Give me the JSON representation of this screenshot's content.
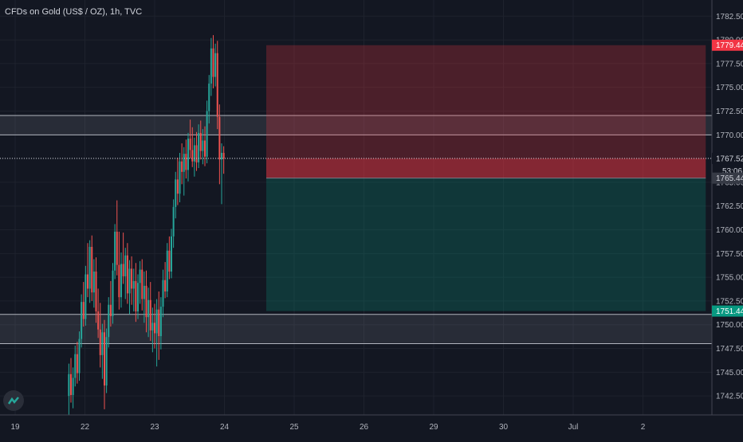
{
  "chart_data": {
    "type": "candlestick",
    "title": "CFDs on Gold (US$ / OZ), 1h, TVC",
    "ylim": [
      1740.5,
      1784.2
    ],
    "y_ticks": [
      1782.5,
      1780,
      1777.5,
      1775,
      1772.5,
      1770,
      1767.5,
      1765,
      1762.5,
      1760,
      1757.5,
      1755,
      1752.5,
      1750,
      1747.5,
      1745,
      1742.5
    ],
    "y_tick_labels": [
      "1782.50",
      "1780.00",
      "1777.50",
      "1775.00",
      "1772.50",
      "1770.00",
      "1767.50",
      "1765.00",
      "1762.50",
      "1760.00",
      "1757.50",
      "1755.00",
      "1752.50",
      "1750.00",
      "1747.50",
      "1745.00",
      "1742.50"
    ],
    "x_ticks": [
      {
        "label": "19",
        "pos": 0
      },
      {
        "label": "22",
        "pos": 1
      },
      {
        "label": "23",
        "pos": 2
      },
      {
        "label": "24",
        "pos": 3
      },
      {
        "label": "25",
        "pos": 4
      },
      {
        "label": "26",
        "pos": 5
      },
      {
        "label": "29",
        "pos": 6
      },
      {
        "label": "30",
        "pos": 7
      },
      {
        "label": "Jul",
        "pos": 8
      },
      {
        "label": "2",
        "pos": 9
      }
    ],
    "price_tags": {
      "stop_loss": {
        "value": 1779.44,
        "label": "1779.44",
        "color": "#f23645"
      },
      "current": {
        "value": 1767.52,
        "label": "1767.52"
      },
      "countdown": {
        "label": "53:06"
      },
      "entry": {
        "value": 1765.44,
        "label": "1765.44"
      },
      "take_profit": {
        "value": 1751.44,
        "label": "1751.44",
        "color": "#089981"
      }
    },
    "zones": [
      {
        "from": 1769.99,
        "to": 1772.04
      },
      {
        "from": 1748.01,
        "to": 1751.09
      }
    ],
    "position": {
      "stop": 1779.44,
      "entry": 1765.44,
      "target": 1751.44,
      "start_pos": 3.6,
      "end_pos": 9.9
    },
    "candles": [
      {
        "pos": 0.77,
        "o": 1742.5,
        "h": 1745.9,
        "l": 1740.5,
        "c": 1744.8
      },
      {
        "pos": 0.8,
        "o": 1744.8,
        "h": 1746.5,
        "l": 1741.8,
        "c": 1742.6
      },
      {
        "pos": 0.83,
        "o": 1742.6,
        "h": 1745.5,
        "l": 1741.2,
        "c": 1744.4
      },
      {
        "pos": 0.86,
        "o": 1744.4,
        "h": 1747.8,
        "l": 1743.5,
        "c": 1746.9
      },
      {
        "pos": 0.89,
        "o": 1746.9,
        "h": 1748.2,
        "l": 1743.8,
        "c": 1744.9
      },
      {
        "pos": 0.92,
        "o": 1744.9,
        "h": 1749.3,
        "l": 1744.1,
        "c": 1748.5
      },
      {
        "pos": 0.95,
        "o": 1748.5,
        "h": 1753.2,
        "l": 1747.6,
        "c": 1752.4
      },
      {
        "pos": 0.98,
        "o": 1752.4,
        "h": 1754.5,
        "l": 1749.8,
        "c": 1750.6
      },
      {
        "pos": 1.01,
        "o": 1750.6,
        "h": 1756.2,
        "l": 1749.9,
        "c": 1755.3
      },
      {
        "pos": 1.04,
        "o": 1755.3,
        "h": 1758.6,
        "l": 1752.9,
        "c": 1753.8
      },
      {
        "pos": 1.07,
        "o": 1753.8,
        "h": 1758.9,
        "l": 1752.3,
        "c": 1758.2
      },
      {
        "pos": 1.1,
        "o": 1758.2,
        "h": 1759.4,
        "l": 1752.5,
        "c": 1753.4
      },
      {
        "pos": 1.13,
        "o": 1753.4,
        "h": 1756.9,
        "l": 1751.8,
        "c": 1755.6
      },
      {
        "pos": 1.16,
        "o": 1755.6,
        "h": 1757.1,
        "l": 1750.2,
        "c": 1751.4
      },
      {
        "pos": 1.19,
        "o": 1751.4,
        "h": 1753.8,
        "l": 1748.6,
        "c": 1749.5
      },
      {
        "pos": 1.22,
        "o": 1749.5,
        "h": 1752.3,
        "l": 1745.5,
        "c": 1746.8
      },
      {
        "pos": 1.25,
        "o": 1746.8,
        "h": 1750.1,
        "l": 1744.3,
        "c": 1749.2
      },
      {
        "pos": 1.28,
        "o": 1749.2,
        "h": 1750.5,
        "l": 1741.1,
        "c": 1743.6
      },
      {
        "pos": 1.31,
        "o": 1743.6,
        "h": 1749.6,
        "l": 1742.8,
        "c": 1748.7
      },
      {
        "pos": 1.34,
        "o": 1748.7,
        "h": 1752.9,
        "l": 1747.6,
        "c": 1752.1
      },
      {
        "pos": 1.37,
        "o": 1752.1,
        "h": 1754.6,
        "l": 1749.8,
        "c": 1750.9
      },
      {
        "pos": 1.4,
        "o": 1750.9,
        "h": 1756.5,
        "l": 1750.1,
        "c": 1755.7
      },
      {
        "pos": 1.43,
        "o": 1755.7,
        "h": 1760.6,
        "l": 1754.8,
        "c": 1759.8
      },
      {
        "pos": 1.46,
        "o": 1759.8,
        "h": 1763.1,
        "l": 1755.2,
        "c": 1756.3
      },
      {
        "pos": 1.49,
        "o": 1756.3,
        "h": 1759.8,
        "l": 1751.6,
        "c": 1752.9
      },
      {
        "pos": 1.52,
        "o": 1752.9,
        "h": 1757.6,
        "l": 1751.8,
        "c": 1756.4
      },
      {
        "pos": 1.55,
        "o": 1756.4,
        "h": 1759.7,
        "l": 1754.3,
        "c": 1755.1
      },
      {
        "pos": 1.58,
        "o": 1755.1,
        "h": 1758.1,
        "l": 1752.7,
        "c": 1757.3
      },
      {
        "pos": 1.61,
        "o": 1757.3,
        "h": 1758.6,
        "l": 1752.2,
        "c": 1753.3
      },
      {
        "pos": 1.64,
        "o": 1753.3,
        "h": 1756.8,
        "l": 1751.1,
        "c": 1755.9
      },
      {
        "pos": 1.67,
        "o": 1755.9,
        "h": 1757.2,
        "l": 1752.1,
        "c": 1753.8
      },
      {
        "pos": 1.7,
        "o": 1753.8,
        "h": 1755.9,
        "l": 1751.4,
        "c": 1754.6
      },
      {
        "pos": 1.73,
        "o": 1754.6,
        "h": 1756.5,
        "l": 1750.3,
        "c": 1751.4
      },
      {
        "pos": 1.76,
        "o": 1751.4,
        "h": 1755.3,
        "l": 1750.6,
        "c": 1754.4
      },
      {
        "pos": 1.79,
        "o": 1754.4,
        "h": 1756.7,
        "l": 1752.2,
        "c": 1755.8
      },
      {
        "pos": 1.82,
        "o": 1755.8,
        "h": 1756.9,
        "l": 1751.5,
        "c": 1752.7
      },
      {
        "pos": 1.85,
        "o": 1752.7,
        "h": 1755.6,
        "l": 1750.2,
        "c": 1754.1
      },
      {
        "pos": 1.88,
        "o": 1754.1,
        "h": 1755.7,
        "l": 1749.2,
        "c": 1750.8
      },
      {
        "pos": 1.91,
        "o": 1750.8,
        "h": 1753.9,
        "l": 1748.7,
        "c": 1752.6
      },
      {
        "pos": 1.94,
        "o": 1752.6,
        "h": 1754.5,
        "l": 1748.3,
        "c": 1749.4
      },
      {
        "pos": 1.97,
        "o": 1749.4,
        "h": 1751.8,
        "l": 1747.1,
        "c": 1750.2
      },
      {
        "pos": 2.0,
        "o": 1750.2,
        "h": 1752.2,
        "l": 1747.5,
        "c": 1749.1
      },
      {
        "pos": 2.03,
        "o": 1749.1,
        "h": 1752.7,
        "l": 1745.6,
        "c": 1751.6
      },
      {
        "pos": 2.06,
        "o": 1751.6,
        "h": 1753.5,
        "l": 1746.3,
        "c": 1748.8
      },
      {
        "pos": 2.09,
        "o": 1748.8,
        "h": 1752.9,
        "l": 1747.4,
        "c": 1751.9
      },
      {
        "pos": 2.12,
        "o": 1751.9,
        "h": 1755.8,
        "l": 1750.8,
        "c": 1754.7
      },
      {
        "pos": 2.15,
        "o": 1754.7,
        "h": 1756.6,
        "l": 1752.8,
        "c": 1753.5
      },
      {
        "pos": 2.18,
        "o": 1753.5,
        "h": 1758.6,
        "l": 1752.9,
        "c": 1757.8
      },
      {
        "pos": 2.21,
        "o": 1757.8,
        "h": 1759.3,
        "l": 1754.8,
        "c": 1755.6
      },
      {
        "pos": 2.24,
        "o": 1755.6,
        "h": 1760.1,
        "l": 1754.9,
        "c": 1759.3
      },
      {
        "pos": 2.27,
        "o": 1759.3,
        "h": 1763.2,
        "l": 1758.1,
        "c": 1762.4
      },
      {
        "pos": 2.3,
        "o": 1762.4,
        "h": 1766.1,
        "l": 1761.2,
        "c": 1765.3
      },
      {
        "pos": 2.33,
        "o": 1765.3,
        "h": 1767.6,
        "l": 1762.6,
        "c": 1763.8
      },
      {
        "pos": 2.36,
        "o": 1763.8,
        "h": 1768.1,
        "l": 1762.9,
        "c": 1767.2
      },
      {
        "pos": 2.39,
        "o": 1767.2,
        "h": 1769.1,
        "l": 1764.8,
        "c": 1766.1
      },
      {
        "pos": 2.42,
        "o": 1766.1,
        "h": 1768.7,
        "l": 1763.6,
        "c": 1768.0
      },
      {
        "pos": 2.45,
        "o": 1768.0,
        "h": 1769.5,
        "l": 1765.4,
        "c": 1766.3
      },
      {
        "pos": 2.48,
        "o": 1766.3,
        "h": 1770.2,
        "l": 1765.1,
        "c": 1769.6
      },
      {
        "pos": 2.51,
        "o": 1769.6,
        "h": 1771.6,
        "l": 1767.5,
        "c": 1768.4
      },
      {
        "pos": 2.54,
        "o": 1768.4,
        "h": 1770.8,
        "l": 1766.6,
        "c": 1767.2
      },
      {
        "pos": 2.57,
        "o": 1767.2,
        "h": 1769.7,
        "l": 1765.6,
        "c": 1768.9
      },
      {
        "pos": 2.6,
        "o": 1768.9,
        "h": 1770.3,
        "l": 1766.2,
        "c": 1767.1
      },
      {
        "pos": 2.63,
        "o": 1767.1,
        "h": 1771.1,
        "l": 1766.5,
        "c": 1770.2
      },
      {
        "pos": 2.66,
        "o": 1770.2,
        "h": 1771.5,
        "l": 1767.4,
        "c": 1768.3
      },
      {
        "pos": 2.69,
        "o": 1768.3,
        "h": 1770.6,
        "l": 1766.9,
        "c": 1769.4
      },
      {
        "pos": 2.72,
        "o": 1769.4,
        "h": 1770.9,
        "l": 1766.7,
        "c": 1767.7
      },
      {
        "pos": 2.75,
        "o": 1767.7,
        "h": 1773.6,
        "l": 1767.0,
        "c": 1772.5
      },
      {
        "pos": 2.78,
        "o": 1772.5,
        "h": 1776.3,
        "l": 1771.2,
        "c": 1775.4
      },
      {
        "pos": 2.81,
        "o": 1775.4,
        "h": 1780.2,
        "l": 1774.1,
        "c": 1779.1
      },
      {
        "pos": 2.84,
        "o": 1779.1,
        "h": 1780.5,
        "l": 1774.9,
        "c": 1776.1
      },
      {
        "pos": 2.87,
        "o": 1776.1,
        "h": 1779.6,
        "l": 1775.1,
        "c": 1778.6
      },
      {
        "pos": 2.9,
        "o": 1778.6,
        "h": 1779.9,
        "l": 1770.6,
        "c": 1771.9
      },
      {
        "pos": 2.93,
        "o": 1771.9,
        "h": 1773.2,
        "l": 1764.8,
        "c": 1767.4
      },
      {
        "pos": 2.96,
        "o": 1767.4,
        "h": 1769.1,
        "l": 1762.7,
        "c": 1768.1
      },
      {
        "pos": 2.99,
        "o": 1768.1,
        "h": 1768.8,
        "l": 1765.9,
        "c": 1767.52
      }
    ]
  }
}
